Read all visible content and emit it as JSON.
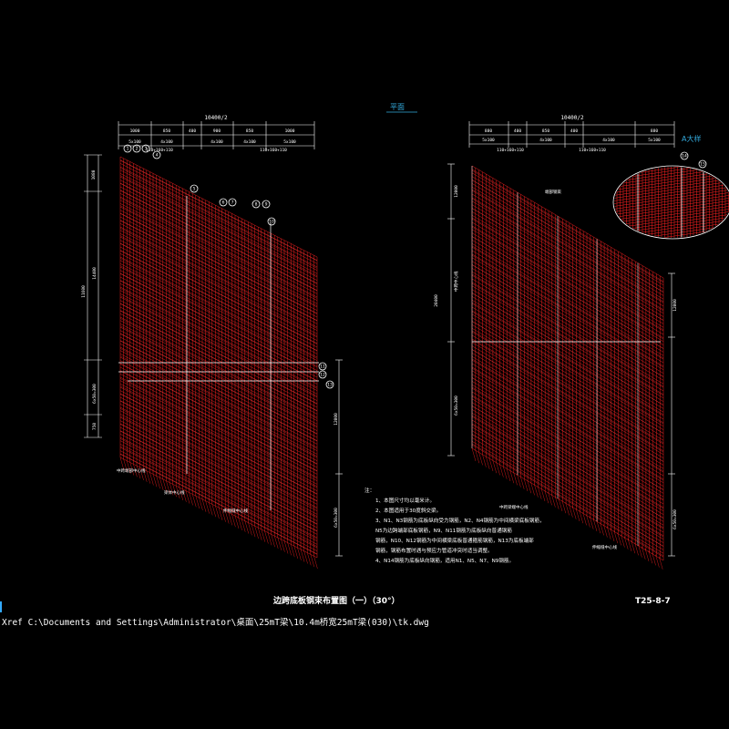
{
  "drawing": {
    "title": "边跨底板钢束布置图（一）（30°）",
    "code": "T25-8-7",
    "plan_label": "平面",
    "detail_label": "A大样",
    "xref_path": "Xref C:\\Documents and Settings\\Administrator\\桌面\\25mT梁\\10.4m桥宽25mT梁(030)\\tk.dwg"
  },
  "left_view": {
    "top_total_dim": "10400/2",
    "top_dims": [
      "1000",
      "850",
      "400",
      "900",
      "850",
      "1000"
    ],
    "sub_dims": [
      "5x100",
      "4x100",
      "4x100",
      "4x100",
      "4x100",
      "5x100"
    ],
    "bottom_dims": [
      "110+160+110",
      "110+160+110"
    ],
    "left_dims": [
      "1080",
      "11600",
      "14400",
      "6x50=300",
      "750"
    ],
    "right_dims": [
      "12000",
      "6x50=300"
    ],
    "labels": [
      "中跨端部中心线",
      "梁体中心线",
      "伸缩缝中心线"
    ]
  },
  "right_view": {
    "top_total_dim": "10400/2",
    "top_dims": [
      "880",
      "400",
      "850",
      "400",
      "880"
    ],
    "sub_dims": [
      "5x100",
      "4x100",
      "4x100",
      "4x100",
      "5x100"
    ],
    "bottom_dims": [
      "110+160+110",
      "110+160+110"
    ],
    "left_dims": [
      "12000",
      "6x50=300",
      "20400"
    ],
    "right_dims": [
      "12000",
      "6x50=300"
    ],
    "labels": [
      "端部钢束",
      "中跨中心线",
      "中跨梁端中心线",
      "伸缩缝中心线"
    ]
  },
  "notes": {
    "heading": "注：",
    "lines": [
      "1、本图尺寸均以毫米计。",
      "2、本图适用于30度斜交梁。",
      "3、N1、N3钢筋为底板纵向受力钢筋，N2、N4钢筋为中间横梁底板钢筋，",
      "   N5为边跨端部底板钢筋，N9、N11钢筋为底板纵向普通钢筋",
      "   钢筋，N10、N12钢筋为中间横梁底板普通箍筋钢筋，N13为底板端部",
      "   钢筋，钢筋布置时遇与预应力管道冲突时适当调整。",
      "4、N14钢筋为底板纵向钢筋，适用N1、N5、N7、N9钢筋。"
    ]
  },
  "bubbles": [
    "1",
    "2",
    "3",
    "4",
    "5",
    "6",
    "7",
    "8",
    "9",
    "10",
    "11",
    "12",
    "13",
    "14",
    "15"
  ]
}
